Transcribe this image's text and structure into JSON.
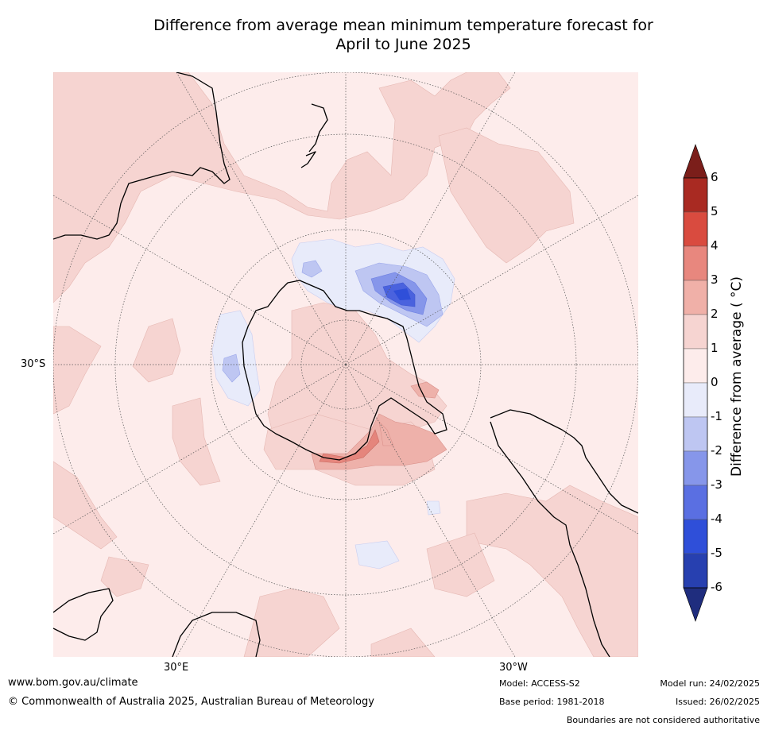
{
  "title": {
    "line1": "Difference from average mean minimum temperature forecast for",
    "line2": "April to June 2025"
  },
  "map": {
    "projection": "south-polar stereographic",
    "graticule_labels": {
      "lat_left": "30°S",
      "lon_bottom_left": "30°E",
      "lon_bottom_right": "30°W"
    }
  },
  "colorbar": {
    "label": "Difference from average ( °C)",
    "ticks": [
      "6",
      "5",
      "4",
      "3",
      "2",
      "1",
      "0",
      "-1",
      "-2",
      "-3",
      "-4",
      "-5",
      "-6"
    ],
    "bins_top_to_bottom": [
      "#7b1e1a",
      "#a92a22",
      "#d94b3f",
      "#e8877e",
      "#f0b0a8",
      "#f6d4d1",
      "#fdeceb",
      "#e8ebfa",
      "#bec6f2",
      "#8696ea",
      "#5a6fe2",
      "#2f4fd9",
      "#2740b0",
      "#1f2d7e"
    ]
  },
  "footer": {
    "website": "www.bom.gov.au/climate",
    "copyright": "© Commonwealth of Australia 2025, Australian Bureau of Meteorology",
    "model": "Model: ACCESS-S2",
    "base_period": "Base period: 1981-2018",
    "model_run": "Model run: 24/02/2025",
    "issued": "Issued: 26/02/2025",
    "disclaimer": "Boundaries are not considered authoritative"
  }
}
